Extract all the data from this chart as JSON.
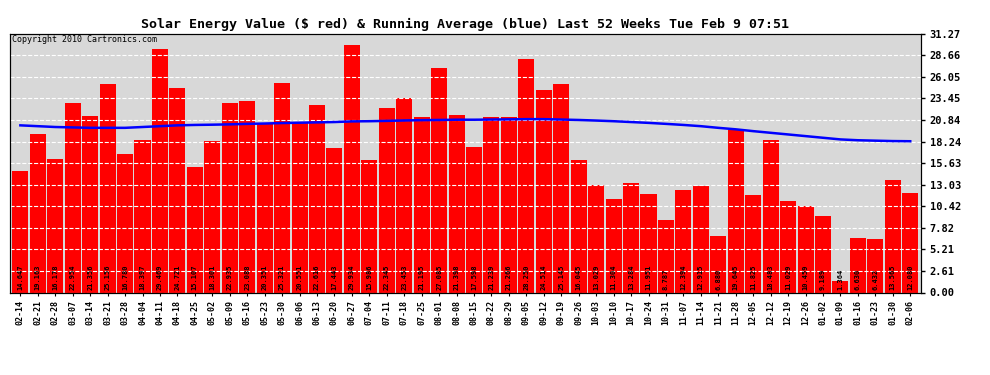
{
  "title": "Solar Energy Value ($ red) & Running Average (blue) Last 52 Weeks Tue Feb 9 07:51",
  "copyright": "Copyright 2010 Cartronics.com",
  "bar_color": "#FF0000",
  "line_color": "#0000FF",
  "background_color": "#D8D8D8",
  "grid_color": "#AAAAAA",
  "ylabel_right": [
    "0.00",
    "2.61",
    "5.21",
    "7.82",
    "10.42",
    "13.03",
    "15.63",
    "18.24",
    "20.84",
    "23.45",
    "26.05",
    "28.66",
    "31.27"
  ],
  "yticks": [
    0.0,
    2.61,
    5.21,
    7.82,
    10.42,
    13.03,
    15.63,
    18.24,
    20.84,
    23.45,
    26.05,
    28.66,
    31.27
  ],
  "dates": [
    "02-14",
    "02-21",
    "02-28",
    "03-07",
    "03-14",
    "03-21",
    "03-28",
    "04-04",
    "04-11",
    "04-18",
    "04-25",
    "05-02",
    "05-09",
    "05-16",
    "05-23",
    "05-30",
    "06-06",
    "06-13",
    "06-20",
    "06-27",
    "07-04",
    "07-11",
    "07-18",
    "07-25",
    "08-01",
    "08-08",
    "08-15",
    "08-22",
    "08-29",
    "09-05",
    "09-12",
    "09-19",
    "09-26",
    "10-03",
    "10-10",
    "10-17",
    "10-24",
    "10-31",
    "11-07",
    "11-14",
    "11-21",
    "11-28",
    "12-05",
    "12-12",
    "12-19",
    "12-26",
    "01-02",
    "01-09",
    "01-16",
    "01-23",
    "01-30",
    "02-06"
  ],
  "values": [
    14.647,
    19.163,
    16.178,
    22.954,
    21.356,
    25.156,
    16.78,
    18.397,
    29.469,
    24.721,
    15.107,
    18.301,
    22.935,
    23.088,
    20.351,
    25.321,
    20.551,
    22.616,
    17.443,
    29.934,
    15.986,
    22.345,
    23.453,
    21.195,
    27.085,
    21.398,
    17.598,
    21.239,
    21.266,
    28.25,
    24.514,
    25.145,
    16.045,
    13.029,
    11.304,
    13.284,
    11.951,
    8.787,
    12.394,
    12.915,
    6.88,
    19.645,
    11.825,
    18.483,
    11.029,
    10.459,
    9.189,
    1.364,
    6.63,
    6.432,
    13.565,
    12.08
  ],
  "running_avg": [
    20.2,
    20.1,
    20.0,
    19.95,
    19.9,
    19.9,
    19.9,
    20.0,
    20.1,
    20.2,
    20.25,
    20.28,
    20.32,
    20.38,
    20.42,
    20.48,
    20.52,
    20.56,
    20.6,
    20.68,
    20.7,
    20.74,
    20.79,
    20.83,
    20.85,
    20.88,
    20.88,
    20.9,
    20.92,
    20.95,
    20.95,
    20.9,
    20.85,
    20.78,
    20.7,
    20.6,
    20.5,
    20.38,
    20.25,
    20.1,
    19.9,
    19.72,
    19.5,
    19.3,
    19.1,
    18.9,
    18.7,
    18.5,
    18.4,
    18.35,
    18.3,
    18.28
  ]
}
